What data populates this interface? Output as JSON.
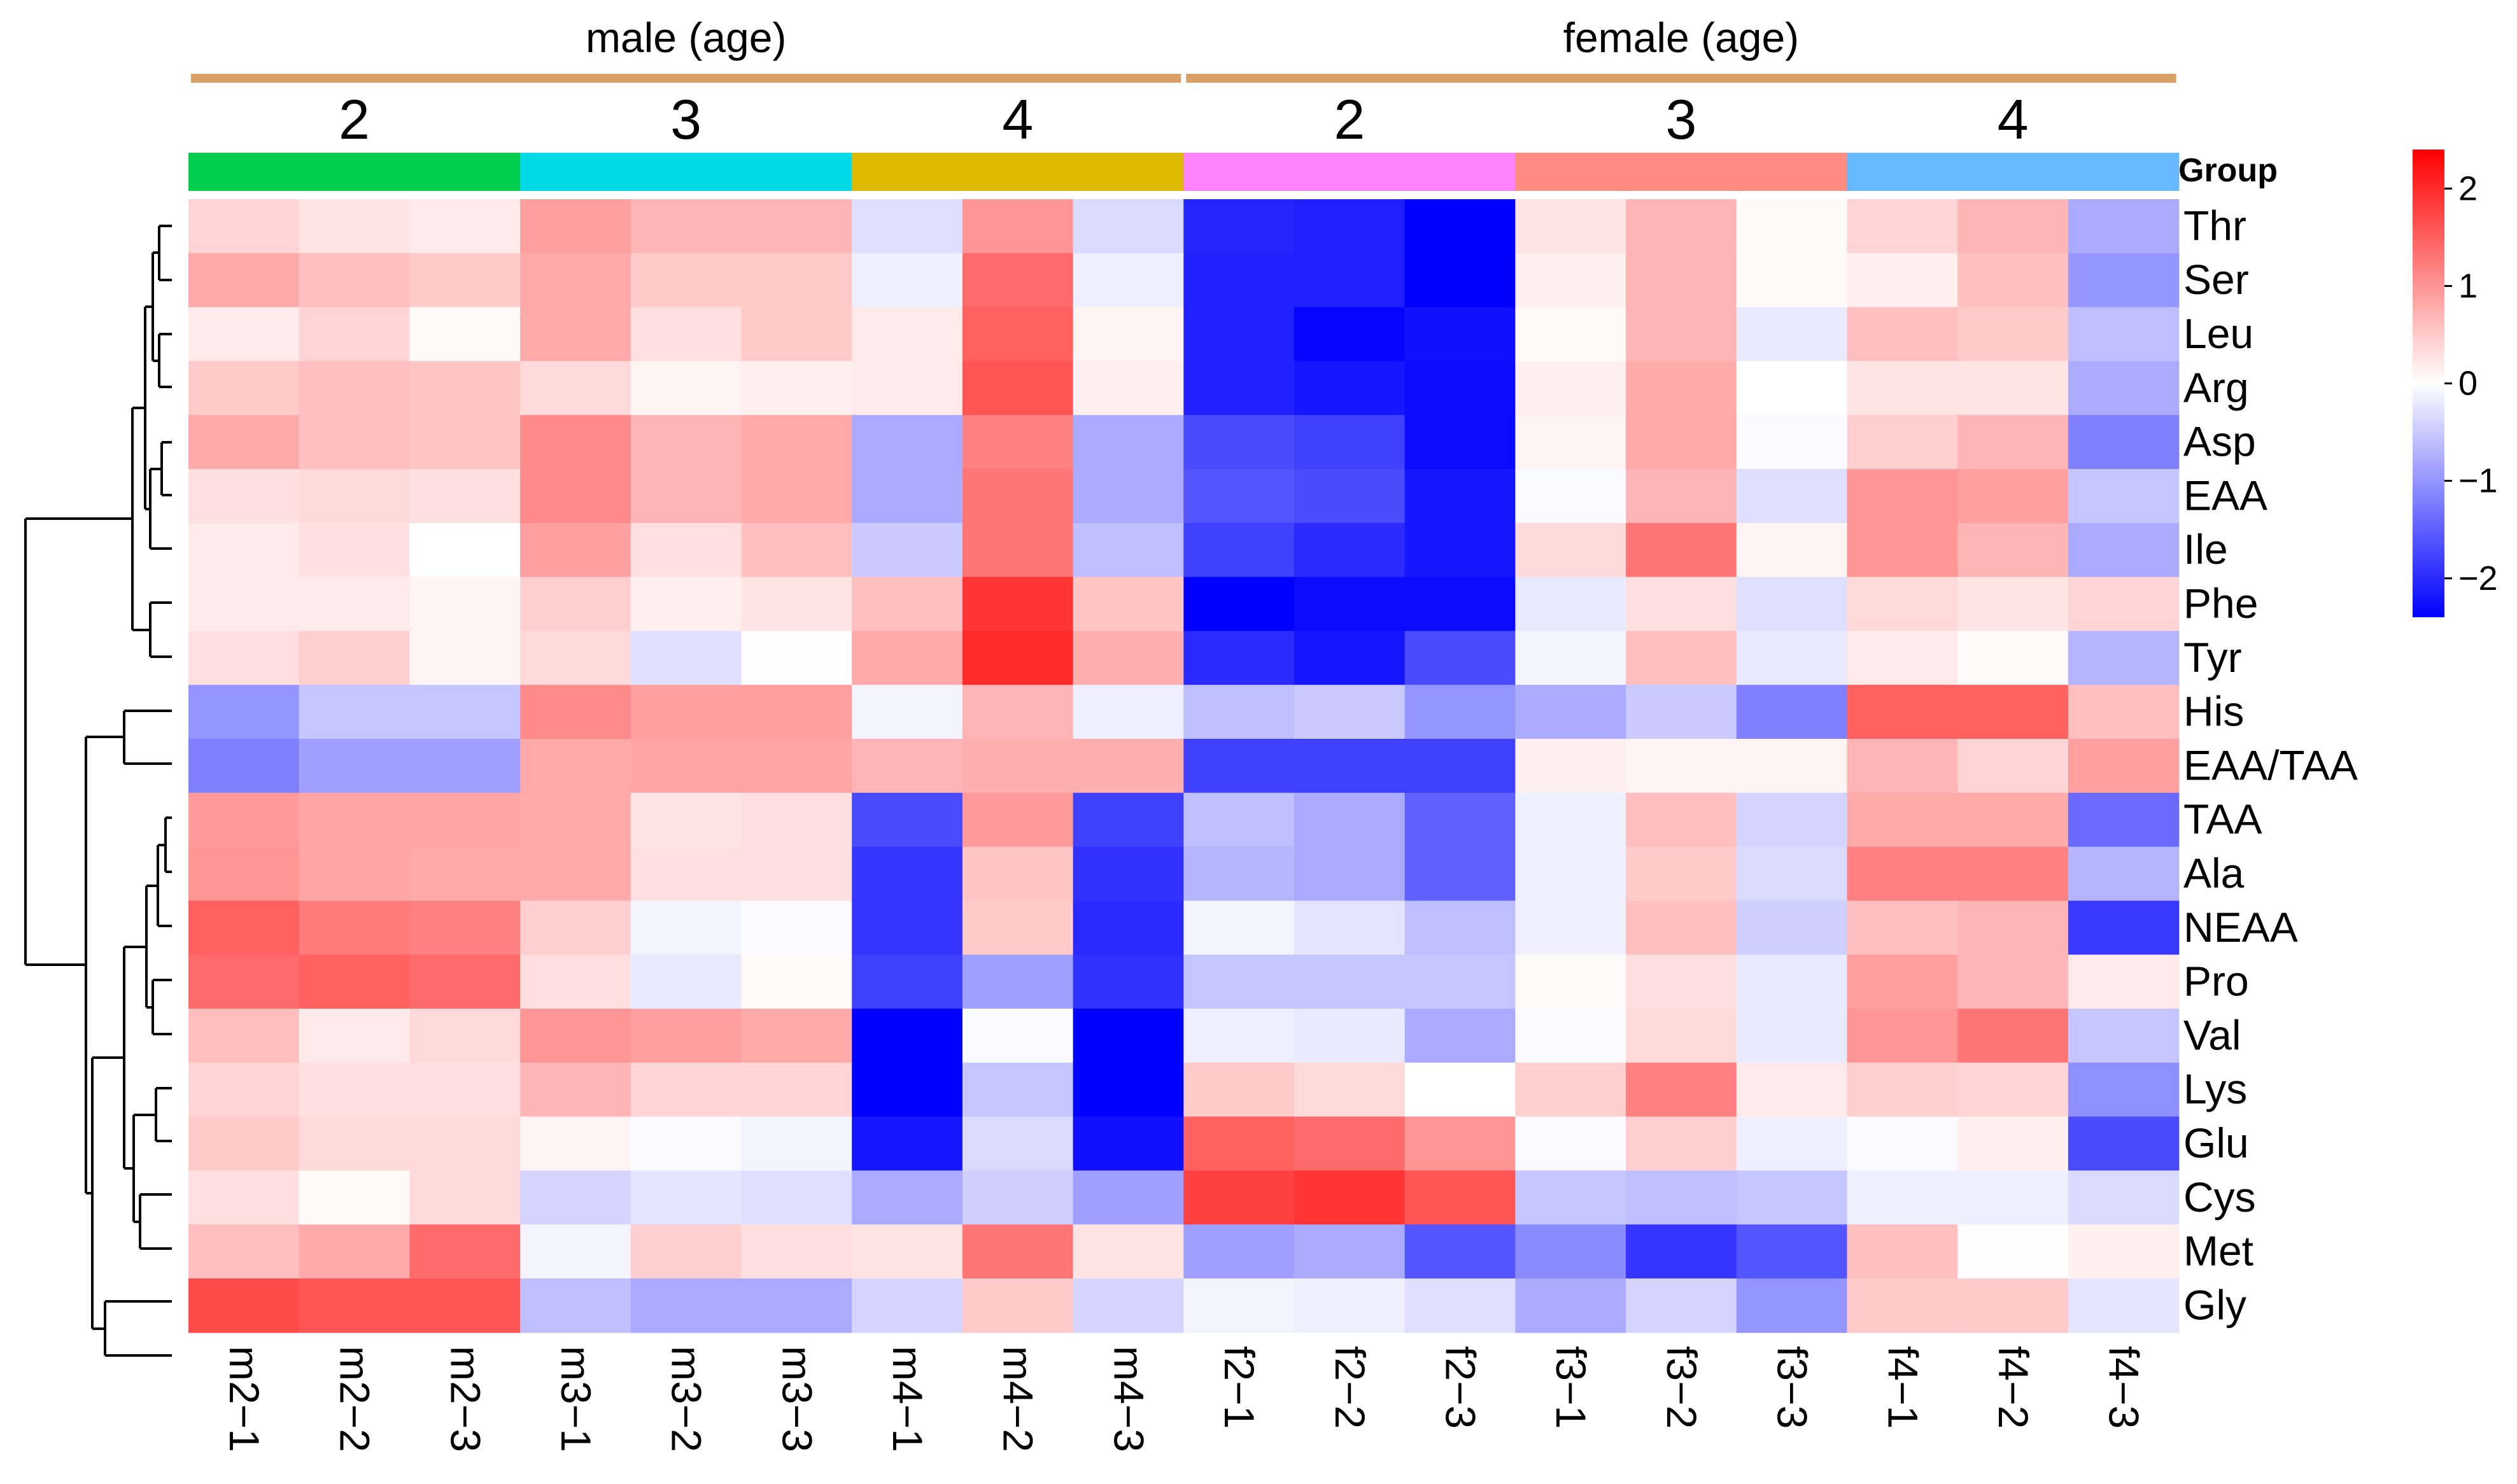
{
  "chart_data": {
    "type": "heatmap",
    "title": "",
    "sex_groups": [
      {
        "label": "male (age)",
        "span": [
          0,
          8
        ]
      },
      {
        "label": "female (age)",
        "span": [
          9,
          17
        ]
      }
    ],
    "age_groups": [
      {
        "label": "2",
        "color": "#00CC4E",
        "span": [
          0,
          2
        ]
      },
      {
        "label": "3",
        "color": "#00D9E6",
        "span": [
          3,
          5
        ]
      },
      {
        "label": "4",
        "color": "#DDBA00",
        "span": [
          6,
          8
        ]
      },
      {
        "label": "2",
        "color": "#FF82FF",
        "span": [
          9,
          11
        ]
      },
      {
        "label": "3",
        "color": "#FF8C82",
        "span": [
          12,
          14
        ]
      },
      {
        "label": "4",
        "color": "#66B8FF",
        "span": [
          15,
          17
        ]
      }
    ],
    "group_annotation_label": "Group",
    "columns": [
      "m2−1",
      "m2−2",
      "m2−3",
      "m3−1",
      "m3−2",
      "m3−3",
      "m4−1",
      "m4−2",
      "m4−3",
      "f2−1",
      "f2−2",
      "f2−3",
      "f3−1",
      "f3−2",
      "f3−3",
      "f4−1",
      "f4−2",
      "f4−3"
    ],
    "rows": [
      "Thr",
      "Ser",
      "Leu",
      "Arg",
      "Asp",
      "EAA",
      "Ile",
      "Phe",
      "Tyr",
      "His",
      "EAA/TAA",
      "TAA",
      "Ala",
      "NEAA",
      "Pro",
      "Val",
      "Lys",
      "Glu",
      "Cys",
      "Met",
      "Gly"
    ],
    "values": [
      [
        0.4,
        0.25,
        0.2,
        0.9,
        0.7,
        0.7,
        -0.3,
        1.0,
        -0.35,
        -2.05,
        -2.1,
        -2.4,
        0.25,
        0.7,
        0.05,
        0.4,
        0.7,
        -0.8
      ],
      [
        0.8,
        0.6,
        0.5,
        0.8,
        0.5,
        0.5,
        -0.15,
        1.4,
        -0.15,
        -2.1,
        -2.1,
        -2.4,
        0.15,
        0.7,
        0.05,
        0.15,
        0.6,
        -1.0
      ],
      [
        0.2,
        0.4,
        0.05,
        0.8,
        0.3,
        0.5,
        0.2,
        1.5,
        0.1,
        -2.1,
        -2.35,
        -2.25,
        0.05,
        0.7,
        -0.2,
        0.6,
        0.5,
        -0.6
      ],
      [
        0.5,
        0.6,
        0.55,
        0.35,
        0.1,
        0.15,
        0.2,
        1.6,
        0.15,
        -2.1,
        -2.2,
        -2.3,
        0.15,
        0.8,
        0.0,
        0.25,
        0.25,
        -0.8
      ],
      [
        0.8,
        0.6,
        0.55,
        1.1,
        0.7,
        0.8,
        -0.8,
        1.2,
        -0.8,
        -1.7,
        -1.8,
        -2.3,
        0.1,
        0.8,
        -0.05,
        0.45,
        0.7,
        -1.2
      ],
      [
        0.3,
        0.35,
        0.3,
        1.1,
        0.7,
        0.8,
        -0.8,
        1.3,
        -0.8,
        -1.6,
        -1.7,
        -2.2,
        -0.05,
        0.7,
        -0.3,
        1.0,
        0.9,
        -0.55
      ],
      [
        0.2,
        0.3,
        0.0,
        0.9,
        0.3,
        0.6,
        -0.5,
        1.3,
        -0.6,
        -1.8,
        -2.0,
        -2.2,
        0.35,
        1.3,
        0.1,
        1.0,
        0.7,
        -0.8
      ],
      [
        0.2,
        0.2,
        0.1,
        0.45,
        0.15,
        0.25,
        0.6,
        1.9,
        0.55,
        -2.4,
        -2.3,
        -2.3,
        -0.2,
        0.3,
        -0.3,
        0.35,
        0.25,
        0.4
      ],
      [
        0.3,
        0.45,
        0.1,
        0.35,
        -0.3,
        0.02,
        0.8,
        2.0,
        0.75,
        -2.0,
        -2.2,
        -1.7,
        -0.1,
        0.6,
        -0.2,
        0.2,
        0.05,
        -0.7
      ],
      [
        -1.0,
        -0.55,
        -0.55,
        1.1,
        0.9,
        0.9,
        -0.1,
        0.7,
        -0.15,
        -0.6,
        -0.5,
        -1.0,
        -0.8,
        -0.5,
        -1.2,
        1.5,
        1.5,
        0.6
      ],
      [
        -1.2,
        -0.9,
        -0.9,
        0.8,
        0.85,
        0.85,
        0.7,
        0.75,
        0.75,
        -1.8,
        -1.8,
        -1.8,
        0.15,
        0.1,
        0.1,
        0.7,
        0.4,
        0.9
      ],
      [
        0.95,
        0.85,
        0.85,
        0.8,
        0.25,
        0.3,
        -1.7,
        0.95,
        -1.8,
        -0.6,
        -0.8,
        -1.5,
        -0.15,
        0.6,
        -0.4,
        0.8,
        0.8,
        -1.4
      ],
      [
        1.0,
        0.85,
        0.8,
        0.8,
        0.3,
        0.3,
        -1.9,
        0.55,
        -1.95,
        -0.7,
        -0.8,
        -1.5,
        -0.15,
        0.5,
        -0.35,
        1.2,
        1.2,
        -0.7
      ],
      [
        1.5,
        1.25,
        1.2,
        0.45,
        -0.1,
        -0.05,
        -1.9,
        0.5,
        -2.0,
        -0.1,
        -0.25,
        -0.6,
        -0.15,
        0.6,
        -0.45,
        0.6,
        0.7,
        -1.85
      ],
      [
        1.4,
        1.5,
        1.4,
        0.3,
        -0.2,
        0.05,
        -1.8,
        -0.9,
        -1.95,
        -0.55,
        -0.55,
        -0.55,
        0.05,
        0.3,
        -0.2,
        0.9,
        0.7,
        0.2
      ],
      [
        0.6,
        0.2,
        0.35,
        1.0,
        0.9,
        0.8,
        -2.6,
        -0.05,
        -2.7,
        -0.15,
        -0.2,
        -0.8,
        -0.05,
        0.35,
        -0.2,
        1.0,
        1.3,
        -0.55
      ],
      [
        0.4,
        0.3,
        0.3,
        0.7,
        0.4,
        0.4,
        -2.8,
        -0.55,
        -2.9,
        0.5,
        0.35,
        0.0,
        0.45,
        1.2,
        0.2,
        0.45,
        0.4,
        -1.05
      ],
      [
        0.5,
        0.35,
        0.35,
        0.1,
        -0.05,
        -0.1,
        -2.2,
        -0.35,
        -2.25,
        1.5,
        1.4,
        1.0,
        -0.05,
        0.45,
        -0.15,
        -0.05,
        0.15,
        -1.7
      ],
      [
        0.3,
        0.05,
        0.35,
        -0.4,
        -0.25,
        -0.3,
        -0.8,
        -0.45,
        -0.9,
        1.8,
        1.9,
        1.6,
        -0.55,
        -0.6,
        -0.55,
        -0.15,
        -0.15,
        -0.35
      ],
      [
        0.6,
        0.8,
        1.4,
        -0.1,
        0.45,
        0.3,
        0.25,
        1.3,
        0.25,
        -0.9,
        -0.8,
        -1.6,
        -1.1,
        -1.9,
        -1.6,
        0.6,
        0.02,
        0.15
      ],
      [
        1.7,
        1.6,
        1.6,
        -0.6,
        -0.8,
        -0.8,
        -0.4,
        0.5,
        -0.4,
        -0.1,
        -0.15,
        -0.3,
        -0.8,
        -0.4,
        -1.0,
        0.5,
        0.5,
        -0.25
      ]
    ],
    "color_scale": {
      "min": -2.4,
      "max": 2.4,
      "low": "#0000FF",
      "mid": "#FFFFFF",
      "high": "#FF0000"
    },
    "legend": {
      "position": "right",
      "ticks": [
        "2",
        "1",
        "0",
        "−1",
        "−2"
      ],
      "tick_values": [
        2,
        1,
        0,
        -1,
        -2
      ]
    },
    "dendrogram": {
      "side": "left",
      "row_order": "as listed"
    }
  }
}
